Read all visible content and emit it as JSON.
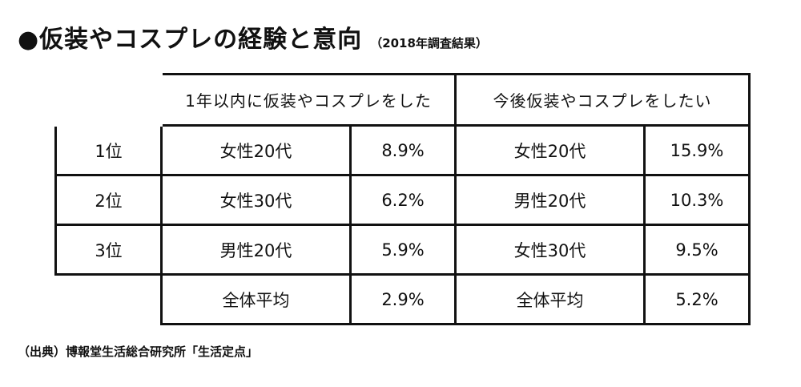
{
  "title": "●仮装やコスプレの経験と意向",
  "subtitle": "（2018年調査結果）",
  "columns": {
    "experience_header": "1年以内に仮装やコスプレをした",
    "intention_header": "今後仮装やコスプレをしたい"
  },
  "rows": [
    {
      "rank": "1位",
      "exp_group": "女性20代",
      "exp_value": "8.9%",
      "int_group": "女性20代",
      "int_value": "15.9%"
    },
    {
      "rank": "2位",
      "exp_group": "女性30代",
      "exp_value": "6.2%",
      "int_group": "男性20代",
      "int_value": "10.3%"
    },
    {
      "rank": "3位",
      "exp_group": "男性20代",
      "exp_value": "5.9%",
      "int_group": "女性30代",
      "int_value": "9.5%"
    }
  ],
  "average": {
    "exp_label": "全体平均",
    "exp_value": "2.9%",
    "int_label": "全体平均",
    "int_value": "5.2%"
  },
  "source": "（出典）博報堂生活総合研究所「生活定点」"
}
